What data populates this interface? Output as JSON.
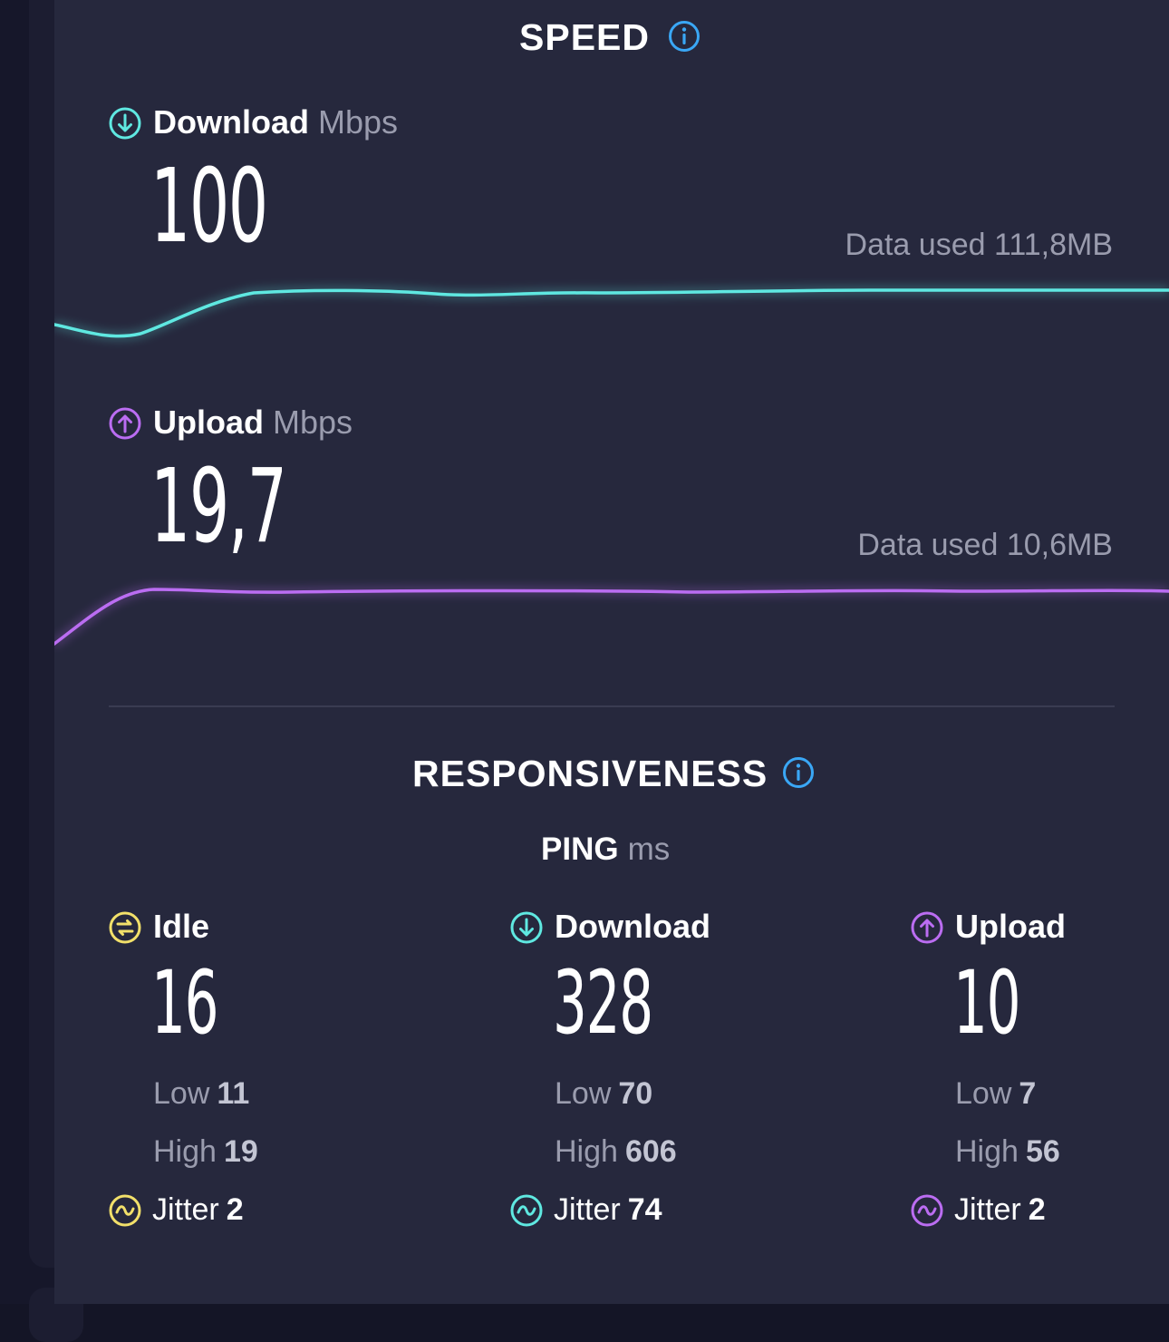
{
  "colors": {
    "download": "#5fe8e1",
    "upload": "#bb6df2",
    "idle": "#f2e06a",
    "info": "#3aa7f5"
  },
  "speed": {
    "title": "SPEED",
    "info_icon": "info-icon",
    "download": {
      "label": "Download",
      "unit": "Mbps",
      "value": "100",
      "data_used": "Data used 111,8MB",
      "icon": "arrow-down-circle-icon"
    },
    "upload": {
      "label": "Upload",
      "unit": "Mbps",
      "value": "19,7",
      "data_used": "Data used 10,6MB",
      "icon": "arrow-up-circle-icon"
    }
  },
  "responsiveness": {
    "title": "RESPONSIVENESS",
    "info_icon": "info-icon",
    "ping_label": "PING",
    "ping_unit": "ms",
    "idle": {
      "label": "Idle",
      "value": "16",
      "low_label": "Low",
      "low": "11",
      "high_label": "High",
      "high": "19",
      "jitter_label": "Jitter",
      "jitter": "2",
      "icon": "idle-icon"
    },
    "download": {
      "label": "Download",
      "value": "328",
      "low_label": "Low",
      "low": "70",
      "high_label": "High",
      "high": "606",
      "jitter_label": "Jitter",
      "jitter": "74",
      "icon": "arrow-down-circle-icon"
    },
    "upload": {
      "label": "Upload",
      "value": "10",
      "low_label": "Low",
      "low": "7",
      "high_label": "High",
      "high": "56",
      "jitter_label": "Jitter",
      "jitter": "2",
      "icon": "arrow-up-circle-icon"
    }
  }
}
